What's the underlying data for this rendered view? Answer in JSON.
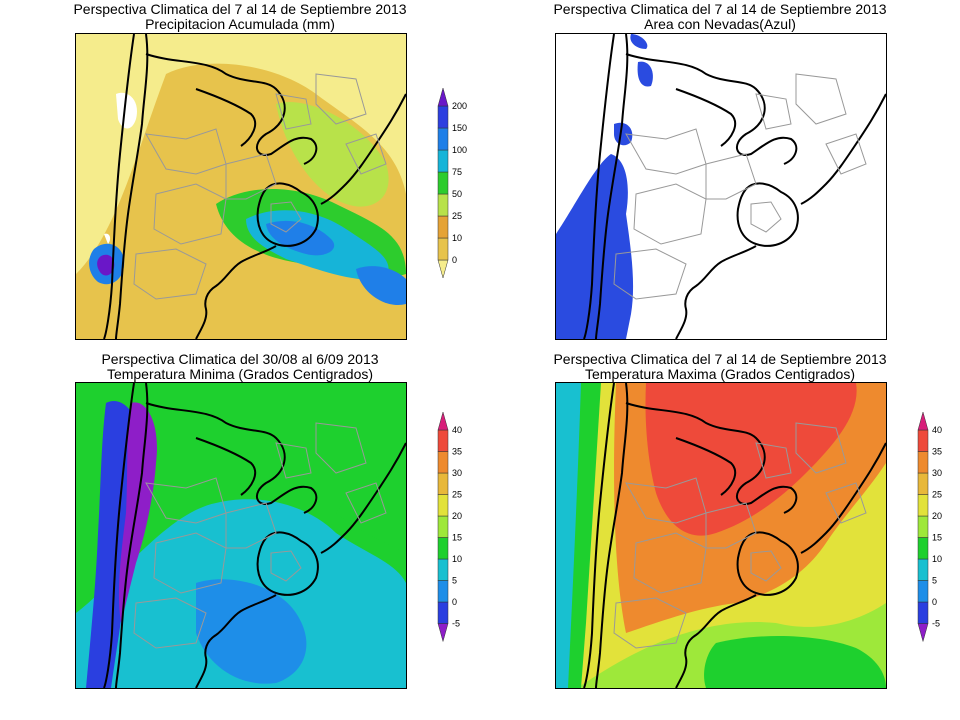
{
  "panels": [
    {
      "id": "precip",
      "title1": "Perspectiva Climatica del 7 al 14 de Septiembre 2013",
      "title2": "Precipitacion Acumulada (mm)",
      "colorbar": {
        "levels": [
          "0",
          "10",
          "25",
          "50",
          "75",
          "100",
          "150",
          "200"
        ],
        "colors": [
          "#f5ec8c",
          "#e7c34c",
          "#e5a336",
          "#b8e24a",
          "#2dcc2d",
          "#16b4d8",
          "#1f7fe8",
          "#2d3fe0",
          "#6a17c8"
        ]
      }
    },
    {
      "id": "snow",
      "title1": "Perspectiva Climatica del 7 al 14 de Septiembre 2013",
      "title2": "Area con Nevadas(Azul)"
    },
    {
      "id": "tmin",
      "title1": "Perspectiva Climatica del 30/08 al 6/09 2013",
      "title2": "Temperatura Minima (Grados Centigrados)",
      "colorbar": {
        "levels": [
          "-5",
          "0",
          "5",
          "10",
          "15",
          "20",
          "25",
          "30",
          "35",
          "40"
        ],
        "colors": [
          "#8e1ec8",
          "#2a3fe0",
          "#1e8ee8",
          "#18c0d0",
          "#1ed02e",
          "#9ee83a",
          "#e2e23a",
          "#e8b83a",
          "#ee8a2e",
          "#ee4a3a",
          "#d81e7a"
        ]
      }
    },
    {
      "id": "tmax",
      "title1": "Perspectiva Climatica del 7 al 14 de Septiembre 2013",
      "title2": "Temperatura Maxima (Grados Centigrados)",
      "colorbar": {
        "levels": [
          "-5",
          "0",
          "5",
          "10",
          "15",
          "20",
          "25",
          "30",
          "35",
          "40"
        ],
        "colors": [
          "#8e1ec8",
          "#2a3fe0",
          "#1e8ee8",
          "#18c0d0",
          "#1ed02e",
          "#9ee83a",
          "#e2e23a",
          "#e8b83a",
          "#ee8a2e",
          "#ee4a3a",
          "#d81e7a"
        ]
      }
    }
  ]
}
